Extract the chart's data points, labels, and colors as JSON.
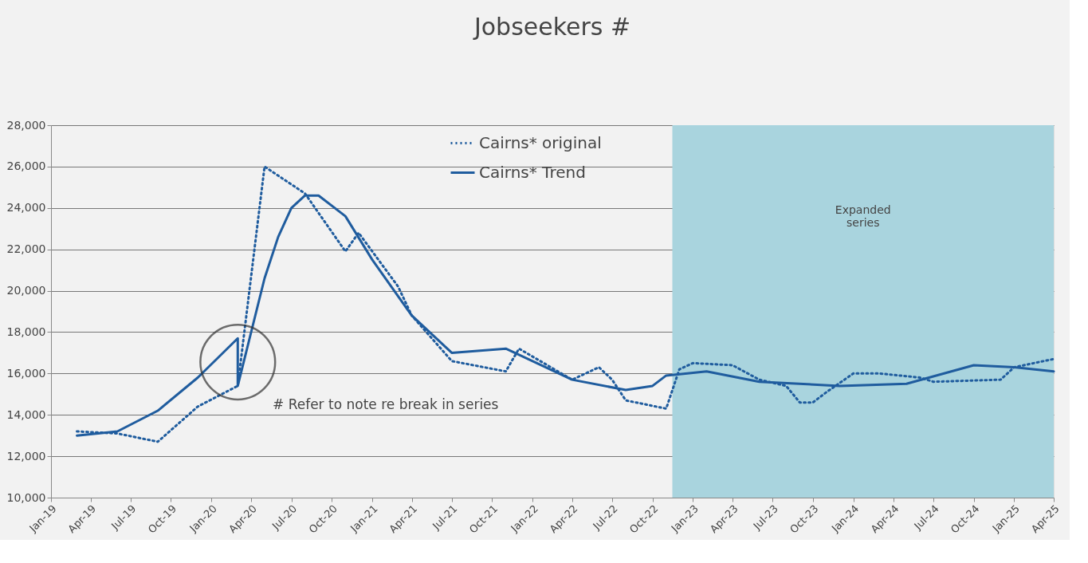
{
  "chart_data": {
    "type": "line",
    "title": "Jobseekers #",
    "xlim": [
      "2019-01",
      "2025-04"
    ],
    "xticks": [
      {
        "value": "2019-01",
        "label": "Jan-19"
      },
      {
        "value": "2019-04",
        "label": "Apr-19"
      },
      {
        "value": "2019-07",
        "label": "Jul-19"
      },
      {
        "value": "2019-10",
        "label": "Oct-19"
      },
      {
        "value": "2020-01",
        "label": "Jan-20"
      },
      {
        "value": "2020-04",
        "label": "Apr-20"
      },
      {
        "value": "2020-07",
        "label": "Jul-20"
      },
      {
        "value": "2020-10",
        "label": "Oct-20"
      },
      {
        "value": "2021-01",
        "label": "Jan-21"
      },
      {
        "value": "2021-04",
        "label": "Apr-21"
      },
      {
        "value": "2021-07",
        "label": "Jul-21"
      },
      {
        "value": "2021-10",
        "label": "Oct-21"
      },
      {
        "value": "2022-01",
        "label": "Jan-22"
      },
      {
        "value": "2022-04",
        "label": "Apr-22"
      },
      {
        "value": "2022-07",
        "label": "Jul-22"
      },
      {
        "value": "2022-10",
        "label": "Oct-22"
      },
      {
        "value": "2023-01",
        "label": "Jan-23"
      },
      {
        "value": "2023-04",
        "label": "Apr-23"
      },
      {
        "value": "2023-07",
        "label": "Jul-23"
      },
      {
        "value": "2023-10",
        "label": "Oct-23"
      },
      {
        "value": "2024-01",
        "label": "Jan-24"
      },
      {
        "value": "2024-04",
        "label": "Apr-24"
      },
      {
        "value": "2024-07",
        "label": "Jul-24"
      },
      {
        "value": "2024-10",
        "label": "Oct-24"
      },
      {
        "value": "2025-01",
        "label": "Jan-25"
      },
      {
        "value": "2025-04",
        "label": "Apr-25"
      }
    ],
    "ylim": [
      10000,
      28000
    ],
    "yticks": [
      {
        "value": 10000,
        "label": "10,000"
      },
      {
        "value": 12000,
        "label": "12,000"
      },
      {
        "value": 14000,
        "label": "14,000"
      },
      {
        "value": 16000,
        "label": "16,000"
      },
      {
        "value": 18000,
        "label": "18,000"
      },
      {
        "value": 20000,
        "label": "20,000"
      },
      {
        "value": 22000,
        "label": "22,000"
      },
      {
        "value": 24000,
        "label": "24,000"
      },
      {
        "value": 26000,
        "label": "26,000"
      },
      {
        "value": 28000,
        "label": "28,000"
      }
    ],
    "grid": "y",
    "legend": "top",
    "series": [
      {
        "name": "Cairns* original",
        "color": "#1f5c9e",
        "line_style": "dotted",
        "x": [
          "2019-03",
          "2019-06",
          "2019-09",
          "2019-12",
          "2020-03",
          "2020-05",
          "2020-08",
          "2020-11",
          "2020-12",
          "2021-03",
          "2021-04",
          "2021-07",
          "2021-11",
          "2021-12",
          "2022-04",
          "2022-06",
          "2022-07",
          "2022-08",
          "2022-11",
          "2022-12",
          "2023-01",
          "2023-04",
          "2023-06",
          "2023-08",
          "2023-09",
          "2023-10",
          "2023-11",
          "2024-01",
          "2024-03",
          "2024-06",
          "2024-07",
          "2024-12",
          "2025-01",
          "2025-04"
        ],
        "values": [
          13200,
          13100,
          12700,
          14400,
          15400,
          26000,
          24700,
          21900,
          22800,
          20200,
          18800,
          16600,
          16100,
          17200,
          15700,
          16300,
          15700,
          14700,
          14300,
          16200,
          16500,
          16400,
          15700,
          15400,
          14600,
          14600,
          15100,
          16000,
          16000,
          15800,
          15600,
          15700,
          16300,
          16700
        ]
      },
      {
        "name": "Cairns* Trend",
        "color": "#1f5c9e",
        "line_style": "solid",
        "x": [
          "2019-03",
          "2019-06",
          "2019-09",
          "2019-12",
          "2020-03",
          "2020-03",
          "2020-05",
          "2020-06",
          "2020-07",
          "2020-08",
          "2020-09",
          "2020-11",
          "2021-01",
          "2021-04",
          "2021-07",
          "2021-11",
          "2022-01",
          "2022-04",
          "2022-08",
          "2022-10",
          "2022-11",
          "2023-02",
          "2023-06",
          "2023-12",
          "2024-05",
          "2024-10",
          "2025-01",
          "2025-04"
        ],
        "values": [
          13000,
          13200,
          14200,
          15800,
          17700,
          15400,
          20600,
          22600,
          24000,
          24600,
          24600,
          23600,
          21500,
          18800,
          17000,
          17200,
          16600,
          15700,
          15200,
          15400,
          15900,
          16100,
          15600,
          15400,
          15500,
          16400,
          16300,
          16100
        ]
      }
    ],
    "bands": [
      {
        "axis": "x",
        "from": "2022-11-15",
        "to": "2025-04",
        "label": "Expanded series",
        "color": "#a9d4de"
      }
    ],
    "annotations": [
      "# Refer to note re break in series"
    ]
  }
}
